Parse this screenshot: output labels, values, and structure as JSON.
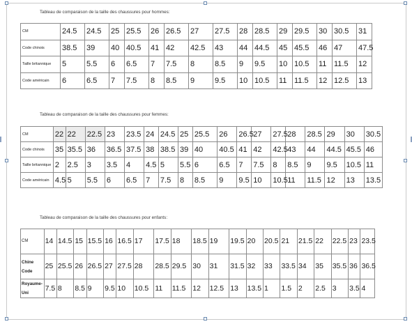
{
  "men": {
    "caption": "Tableau de comparaison de la taille des chaussures pour hommes:",
    "rows": [
      {
        "label": "CM",
        "values": [
          "24.5",
          "24.5",
          "25",
          "25.5",
          "26",
          "26.5",
          "27",
          "27.5",
          "28",
          "28.5",
          "29",
          "29.5",
          "30",
          "30.5",
          "31"
        ]
      },
      {
        "label": "Code chinois",
        "values": [
          "38.5",
          "39",
          "40",
          "40.5",
          "41",
          "42",
          "42.5",
          "43",
          "44",
          "44.5",
          "45",
          "45.5",
          "46",
          "47",
          "47.5"
        ]
      },
      {
        "label": "Taille britannique",
        "values": [
          "5",
          "5.5",
          "6",
          "6.5",
          "7",
          "7.5",
          "8",
          "8.5",
          "9",
          "9.5",
          "10",
          "10.5",
          "11",
          "11.5",
          "12"
        ]
      },
      {
        "label": "Code américain",
        "values": [
          "6",
          "6.5",
          "7",
          "7.5",
          "8",
          "8.5",
          "9",
          "9.5",
          "10",
          "10.5",
          "11",
          "11.5",
          "12",
          "12.5",
          "13"
        ]
      }
    ]
  },
  "women": {
    "caption": "Tableau de comparaison de la taille des chaussures pour femmes:",
    "rows": [
      {
        "label": "CM",
        "values": [
          "22",
          "22",
          "22.5",
          "23",
          "23.5",
          "24",
          "24.5",
          "25",
          "25.5",
          "26",
          "26.5",
          "27",
          "27.5",
          "28",
          "28.5",
          "29",
          "30",
          "30.5"
        ]
      },
      {
        "label": "Code chinois",
        "values": [
          "35",
          "35.5",
          "36",
          "36.5",
          "37.5",
          "38",
          "38.5",
          "39",
          "40",
          "40.5",
          "41",
          "42",
          "42.5",
          "43",
          "44",
          "44.5",
          "45.5",
          "46"
        ]
      },
      {
        "label": "Taille britannique",
        "values": [
          "2",
          "2.5",
          "3",
          "3.5",
          "4",
          "4.5",
          "5",
          "5.5",
          "6",
          "6.5",
          "7",
          "7.5",
          "8",
          "8.5",
          "9",
          "9.5",
          "10.5",
          "11"
        ]
      },
      {
        "label": "Code américain",
        "values": [
          "4.5",
          "5",
          "5.5",
          "6",
          "6.5",
          "7",
          "7.5",
          "8",
          "8.5",
          "9",
          "9.5",
          "10",
          "10.5",
          "11",
          "11.5",
          "12",
          "13",
          "13.5"
        ]
      }
    ]
  },
  "kids": {
    "caption": "Tableau de comparaison de la taille des chaussures pour enfants:",
    "rows": [
      {
        "label": "CM",
        "values": [
          "14",
          "14.5",
          "15",
          "15.5",
          "16",
          "16.5",
          "17",
          "17.5",
          "18",
          "18.5",
          "19",
          "19.5",
          "20",
          "20.5",
          "21",
          "21.5",
          "22",
          "22.5",
          "23",
          "23.5"
        ]
      },
      {
        "label": "Chine Code",
        "values": [
          "25",
          "25.5",
          "26",
          "26.5",
          "27",
          "27.5",
          "28",
          "28.5",
          "29.5",
          "30",
          "31",
          "31.5",
          "32",
          "33",
          "33.5",
          "34",
          "35",
          "35.5",
          "36",
          "36.5"
        ]
      },
      {
        "label": "Royaume-Uni",
        "values": [
          "7.5",
          "8",
          "8.5",
          "9",
          "9.5",
          "10",
          "10.5",
          "11",
          "11.5",
          "12",
          "12.5",
          "13",
          "13.5",
          "1",
          "1.5",
          "2",
          "2.5",
          "3",
          "3.5",
          "4"
        ]
      }
    ]
  }
}
